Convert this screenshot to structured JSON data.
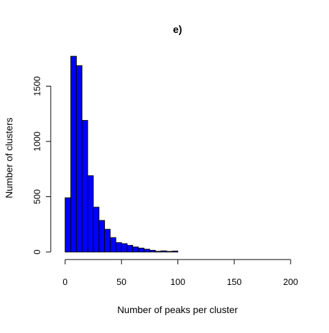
{
  "chart_data": {
    "type": "bar",
    "title": "e)",
    "xlabel": "Number of peaks per cluster",
    "ylabel": "Number of clusters",
    "x_ticks": [
      0,
      50,
      100,
      150,
      200
    ],
    "y_ticks": [
      0,
      500,
      1000,
      1500
    ],
    "xlim": [
      0,
      200
    ],
    "ylim": [
      0,
      1770
    ],
    "bin_width": 5,
    "bins": [
      {
        "x0": 0,
        "x1": 5,
        "count": 490
      },
      {
        "x0": 5,
        "x1": 10,
        "count": 1770
      },
      {
        "x0": 10,
        "x1": 15,
        "count": 1685
      },
      {
        "x0": 15,
        "x1": 20,
        "count": 1190
      },
      {
        "x0": 20,
        "x1": 25,
        "count": 690
      },
      {
        "x0": 25,
        "x1": 30,
        "count": 405
      },
      {
        "x0": 30,
        "x1": 35,
        "count": 285
      },
      {
        "x0": 35,
        "x1": 40,
        "count": 205
      },
      {
        "x0": 40,
        "x1": 45,
        "count": 130
      },
      {
        "x0": 45,
        "x1": 50,
        "count": 85
      },
      {
        "x0": 50,
        "x1": 55,
        "count": 75
      },
      {
        "x0": 55,
        "x1": 60,
        "count": 60
      },
      {
        "x0": 60,
        "x1": 65,
        "count": 45
      },
      {
        "x0": 65,
        "x1": 70,
        "count": 35
      },
      {
        "x0": 70,
        "x1": 75,
        "count": 25
      },
      {
        "x0": 75,
        "x1": 80,
        "count": 15
      },
      {
        "x0": 80,
        "x1": 85,
        "count": 6
      },
      {
        "x0": 85,
        "x1": 90,
        "count": 10
      },
      {
        "x0": 90,
        "x1": 95,
        "count": 5
      },
      {
        "x0": 95,
        "x1": 100,
        "count": 8
      }
    ],
    "bar_color": "#0000ff",
    "bar_edge_color": "#000000",
    "grid": false,
    "legend": "none"
  }
}
